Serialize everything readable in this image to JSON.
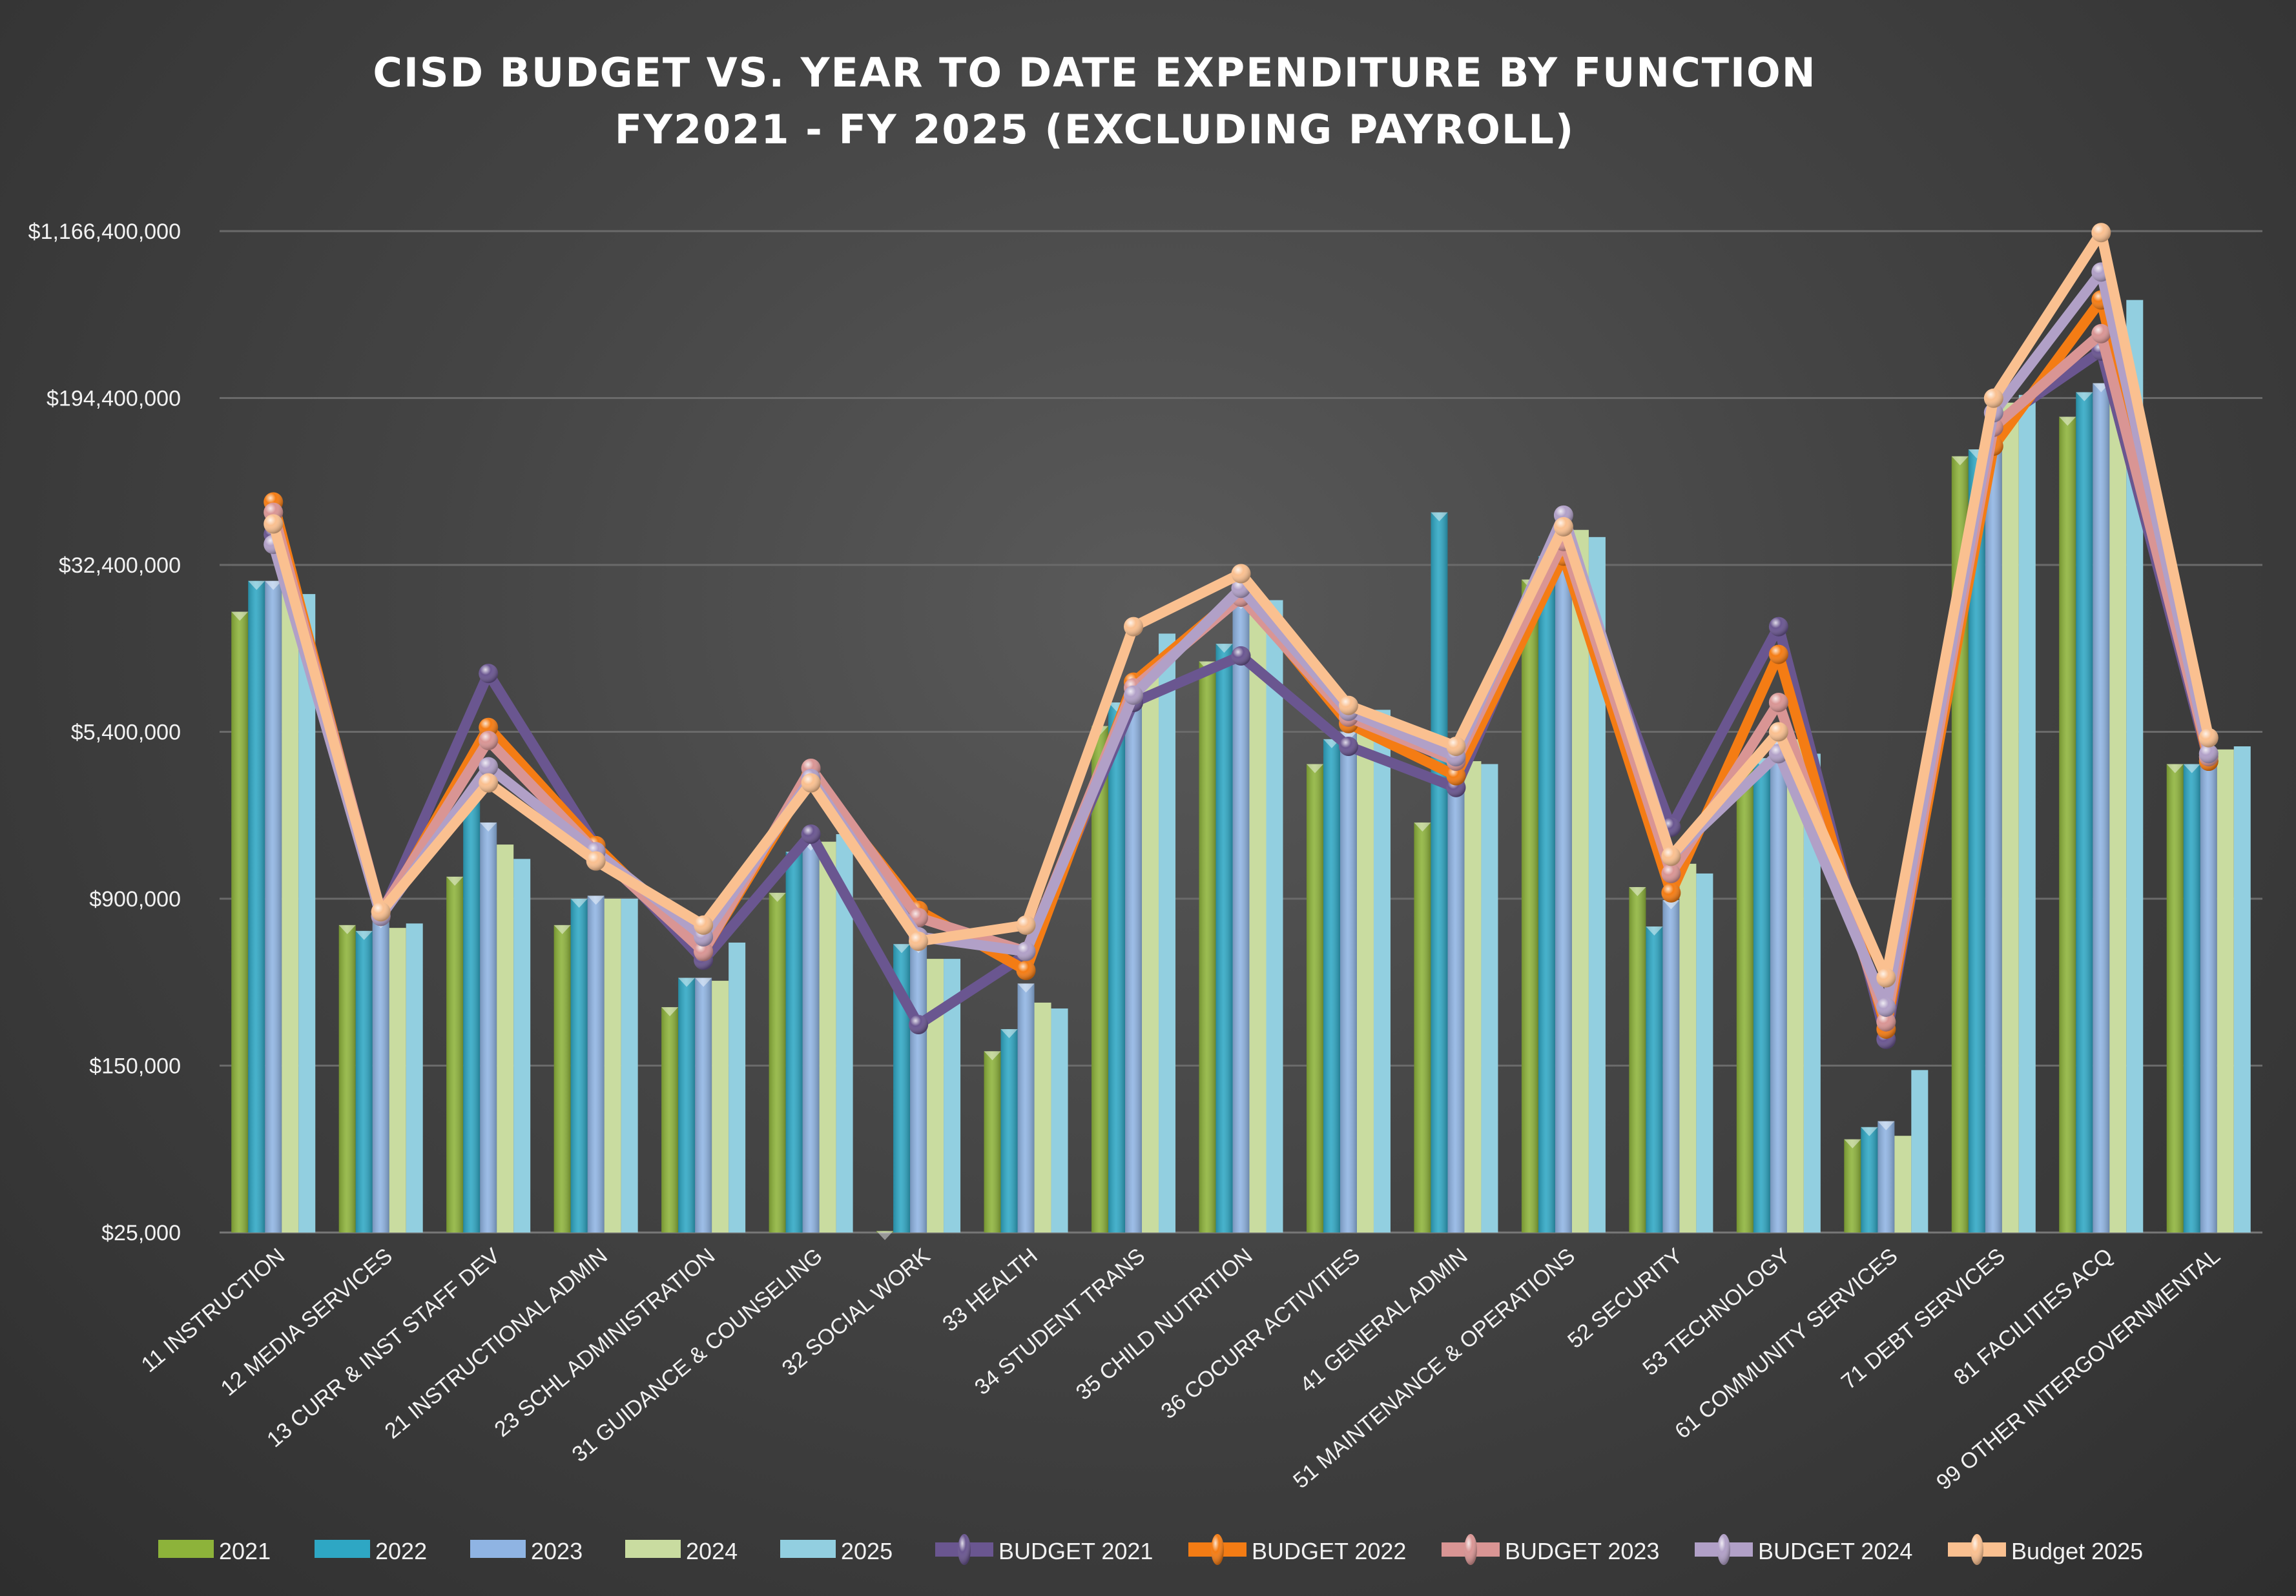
{
  "chart_data": {
    "type": "bar",
    "title": [
      "CISD BUDGET VS. YEAR TO DATE EXPENDITURE BY FUNCTION",
      "FY2021 - FY 2025 (EXCLUDING PAYROLL)"
    ],
    "xlabel": "",
    "ylabel": "",
    "y_scale": "log",
    "ylim": [
      25000,
      1166400000
    ],
    "y_ticks": [
      25000,
      150000,
      900000,
      5400000,
      32400000,
      194400000,
      1166400000
    ],
    "y_tick_labels": [
      "$25,000",
      "$150,000",
      "$900,000",
      "$5,400,000",
      "$32,400,000",
      "$194,400,000",
      "$1,166,400,000"
    ],
    "grid": true,
    "legend_position": "bottom",
    "categories": [
      "11 INSTRUCTION",
      "12 MEDIA SERVICES",
      "13 CURR & INST STAFF DEV",
      "21 INSTRUCTIONAL ADMIN",
      "23 SCHL ADMINISTRATION",
      "31 GUIDANCE & COUNSELING",
      "32 SOCIAL WORK",
      "33 HEALTH",
      "34 STUDENT TRANS",
      "35 CHILD NUTRITION",
      "36 COCURR ACTIVITIES",
      "41 GENERAL ADMIN",
      "51 MAINTENANCE & OPERATIONS",
      "52 SECURITY",
      "53 TECHNOLOGY",
      "61 COMMUNITY SERVICES",
      "71 DEBT SERVICES",
      "81 FACILITIES ACQ",
      "99 OTHER INTERGOVERNMENTAL"
    ],
    "bar_series": [
      {
        "name": "2021",
        "color": "#8db33a",
        "values": [
          19600000,
          678000,
          1140000,
          678000,
          281000,
          959000,
          25400,
          175000,
          5750000,
          11500000,
          3820000,
          2040000,
          27700000,
          1020000,
          3650000,
          68000,
          104000000,
          159000000,
          3820000
        ]
      },
      {
        "name": "2022",
        "color": "#2ea7c4",
        "values": [
          27300000,
          637000,
          2660000,
          900000,
          385000,
          1490000,
          553000,
          222000,
          7400000,
          13900000,
          4990000,
          57000000,
          35600000,
          668000,
          4070000,
          77500,
          112000000,
          207000000,
          3820000
        ]
      },
      {
        "name": "2023",
        "color": "#8fb4e3",
        "values": [
          27300000,
          723000,
          2040000,
          929000,
          385000,
          1660000,
          553000,
          362000,
          9360000,
          22200000,
          5400000,
          4620000,
          47200000,
          886000,
          4990000,
          82600,
          159000000,
          228000000,
          4130000
        ]
      },
      {
        "name": "2024",
        "color": "#c9dca0",
        "values": [
          26000000,
          658000,
          1610000,
          900000,
          373000,
          1660000,
          472000,
          295000,
          10100000,
          19000000,
          5850000,
          3940000,
          47200000,
          1310000,
          4990000,
          70600,
          185000000,
          235000000,
          4470000
        ]
      },
      {
        "name": "2025",
        "color": "#92cfe0",
        "values": [
          23700000,
          690000,
          1380000,
          900000,
          562000,
          1800000,
          472000,
          277000,
          15500000,
          22200000,
          6840000,
          3820000,
          43700000,
          1180000,
          4270000,
          143000,
          201000000,
          557000000,
          4620000
        ]
      }
    ],
    "line_series": [
      {
        "name": "BUDGET 2021",
        "color": "#6a5690",
        "values": [
          45000000,
          745000,
          10100000,
          1590000,
          465000,
          1800000,
          233000,
          495000,
          7400000,
          12200000,
          4620000,
          2970000,
          41700000,
          1940000,
          16700000,
          199000,
          146000000,
          322000000,
          3940000
        ]
      },
      {
        "name": "BUDGET 2022",
        "color": "#f47c14",
        "values": [
          63700000,
          745000,
          5660000,
          1590000,
          511000,
          3370000,
          794000,
          417000,
          9200000,
          24000000,
          5900000,
          3370000,
          35600000,
          959000,
          12400000,
          222000,
          116000000,
          557000000,
          3940000
        ]
      },
      {
        "name": "BUDGET 2023",
        "color": "#d99594",
        "values": [
          57000000,
          782000,
          4920000,
          1490000,
          511000,
          3650000,
          735000,
          511000,
          8660000,
          22900000,
          6320000,
          3940000,
          41700000,
          1180000,
          7400000,
          240000,
          142000000,
          388000000,
          4130000
        ]
      },
      {
        "name": "BUDGET 2024",
        "color": "#b1a0c7",
        "values": [
          40400000,
          745000,
          3710000,
          1490000,
          598000,
          3270000,
          598000,
          511000,
          8000000,
          25200000,
          6730000,
          4130000,
          55300000,
          1420000,
          4270000,
          281000,
          166000000,
          752000000,
          4270000
        ]
      },
      {
        "name": "Budget 2025",
        "color": "#fac090",
        "values": [
          50300000,
          782000,
          3120000,
          1350000,
          678000,
          3120000,
          570000,
          678000,
          16700000,
          29500000,
          7170000,
          4620000,
          48800000,
          1420000,
          5400000,
          385000,
          194000000,
          1148000000,
          5070000
        ]
      }
    ]
  }
}
